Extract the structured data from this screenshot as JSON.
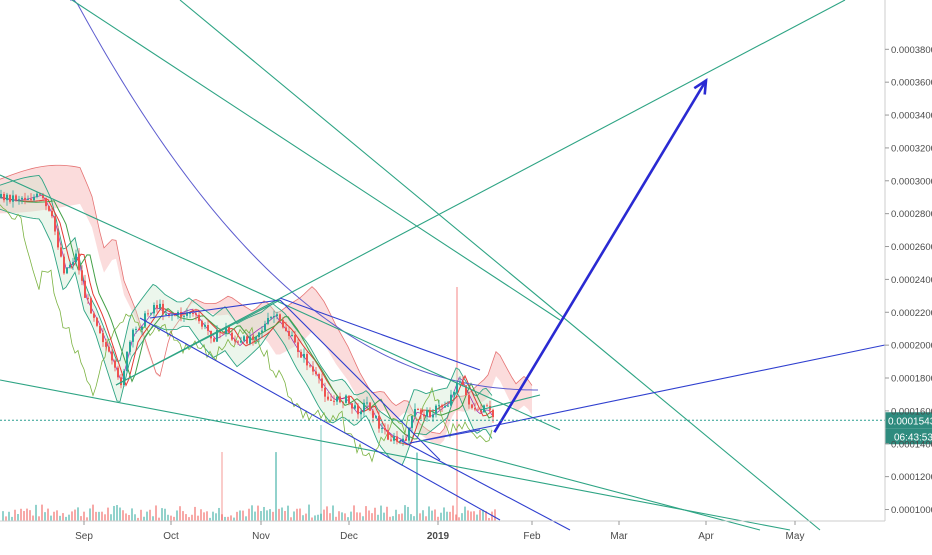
{
  "chart_data": {
    "type": "candlestick",
    "x_axis": {
      "ticks": [
        "Sep",
        "Oct",
        "Nov",
        "Dec",
        "2019",
        "Feb",
        "Mar",
        "Apr",
        "May"
      ]
    },
    "y_axis": {
      "position": "right",
      "range": [
        9.3e-05,
        0.00041
      ],
      "ticks": [
        "0.00038000",
        "0.00036000",
        "0.00034000",
        "0.00032000",
        "0.00030000",
        "0.00028000",
        "0.00026000",
        "0.00024000",
        "0.00022000",
        "0.00020000",
        "0.00018000",
        "0.00016000",
        "0.00014000",
        "0.00012000",
        "0.00010000"
      ]
    },
    "last_price": {
      "label": "0.00015430",
      "value": 0.0001543,
      "countdown": "06:43:53"
    },
    "price_series": [
      {
        "t": "Aug 16",
        "v": 0.00029
      },
      {
        "t": "Aug 20",
        "v": 0.000275
      },
      {
        "t": "Aug 24",
        "v": 0.000245
      },
      {
        "t": "Aug 28",
        "v": 0.000255
      },
      {
        "t": "Sep 1",
        "v": 0.00023
      },
      {
        "t": "Sep 5",
        "v": 0.000215
      },
      {
        "t": "Sep 9",
        "v": 0.000195
      },
      {
        "t": "Sep 13",
        "v": 0.000175
      },
      {
        "t": "Sep 17",
        "v": 0.000205
      },
      {
        "t": "Sep 21",
        "v": 0.000215
      },
      {
        "t": "Sep 25",
        "v": 0.000225
      },
      {
        "t": "Sep 29",
        "v": 0.00022
      },
      {
        "t": "Oct 3",
        "v": 0.000218
      },
      {
        "t": "Oct 7",
        "v": 0.00022
      },
      {
        "t": "Oct 11",
        "v": 0.000212
      },
      {
        "t": "Oct 15",
        "v": 0.000205
      },
      {
        "t": "Oct 19",
        "v": 0.00021
      },
      {
        "t": "Oct 23",
        "v": 0.0002
      },
      {
        "t": "Oct 27",
        "v": 0.000205
      },
      {
        "t": "Nov 1",
        "v": 0.00021
      },
      {
        "t": "Nov 5",
        "v": 0.000218
      },
      {
        "t": "Nov 9",
        "v": 0.00021
      },
      {
        "t": "Nov 13",
        "v": 0.000198
      },
      {
        "t": "Nov 17",
        "v": 0.000188
      },
      {
        "t": "Nov 21",
        "v": 0.000175
      },
      {
        "t": "Nov 25",
        "v": 0.000165
      },
      {
        "t": "Nov 29",
        "v": 0.000168
      },
      {
        "t": "Dec 3",
        "v": 0.00016
      },
      {
        "t": "Dec 7",
        "v": 0.000165
      },
      {
        "t": "Dec 11",
        "v": 0.00015
      },
      {
        "t": "Dec 15",
        "v": 0.000143
      },
      {
        "t": "Dec 19",
        "v": 0.00014
      },
      {
        "t": "Dec 23",
        "v": 0.00016
      },
      {
        "t": "Dec 27",
        "v": 0.000158
      },
      {
        "t": "Dec 31",
        "v": 0.000162
      },
      {
        "t": "Jan 4",
        "v": 0.000165
      },
      {
        "t": "Jan 7",
        "v": 0.00018
      },
      {
        "t": "Jan 10",
        "v": 0.000168
      },
      {
        "t": "Jan 13",
        "v": 0.000157
      },
      {
        "t": "Jan 16",
        "v": 0.000162
      },
      {
        "t": "Jan 19",
        "v": 0.0001543
      }
    ],
    "projection_target": {
      "t": "Apr 1",
      "v": 0.000361
    },
    "colors": {
      "up": "#26a69a",
      "down": "#ef5350",
      "ma_red": "#e53935",
      "ma_green": "#43a047",
      "ma_blue": "#3f51b5",
      "ma_navy": "#5c5ccf",
      "trendline_teal": "#2ea484",
      "trendline_blue": "#2f3fcf",
      "arrow": "#2a2ad2",
      "cloud_red": "#f8c5c5",
      "cloud_green": "#c8e6c9",
      "price_line": "#2a9d8f",
      "axis_text": "#4a4a4a",
      "label_bg": "#2e8b7e"
    }
  }
}
